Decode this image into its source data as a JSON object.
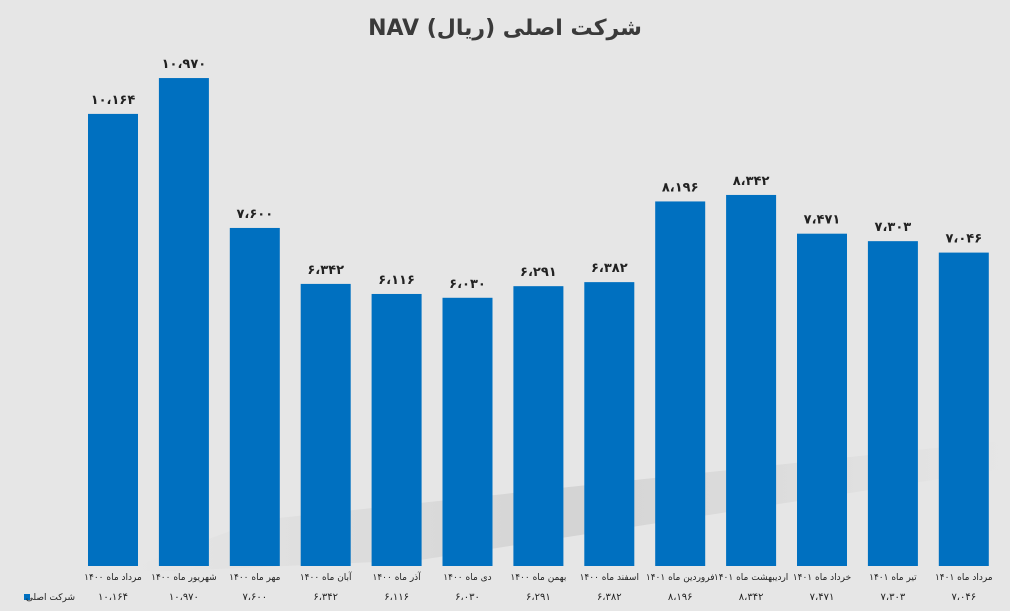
{
  "chart_data": {
    "type": "bar",
    "title": "NAV شرکت اصلی (ریال)",
    "xlabel": "",
    "ylabel": "",
    "ylim": [
      0,
      12500
    ],
    "grid": false,
    "legend_position": "bottom-left",
    "colors": {
      "bar": "#0070c0",
      "background": "#e6e6e6"
    },
    "categories": [
      "مرداد ماه ۱۴۰۰",
      "شهریور ماه ۱۴۰۰",
      "مهر ماه ۱۴۰۰",
      "آبان ماه ۱۴۰۰",
      "آذر ماه ۱۴۰۰",
      "دی ماه ۱۴۰۰",
      "بهمن ماه ۱۴۰۰",
      "اسفند ماه ۱۴۰۰",
      "فروردین ماه ۱۴۰۱",
      "اردیبهشت ماه ۱۴۰۱",
      "خرداد ماه ۱۴۰۱",
      "تیر ماه ۱۴۰۱",
      "مرداد ماه ۱۴۰۱"
    ],
    "series": [
      {
        "name": "شرکت اصلی",
        "values": [
          10164,
          10970,
          7600,
          6342,
          6116,
          6030,
          6291,
          6382,
          8196,
          8342,
          7471,
          7303,
          7046
        ],
        "labels": [
          "۱۰،۱۶۴",
          "۱۰،۹۷۰",
          "۷،۶۰۰",
          "۶،۳۴۲",
          "۶،۱۱۶",
          "۶،۰۳۰",
          "۶،۲۹۱",
          "۶،۳۸۲",
          "۸،۱۹۶",
          "۸،۳۴۲",
          "۷،۴۷۱",
          "۷،۳۰۳",
          "۷،۰۴۶"
        ]
      }
    ]
  }
}
